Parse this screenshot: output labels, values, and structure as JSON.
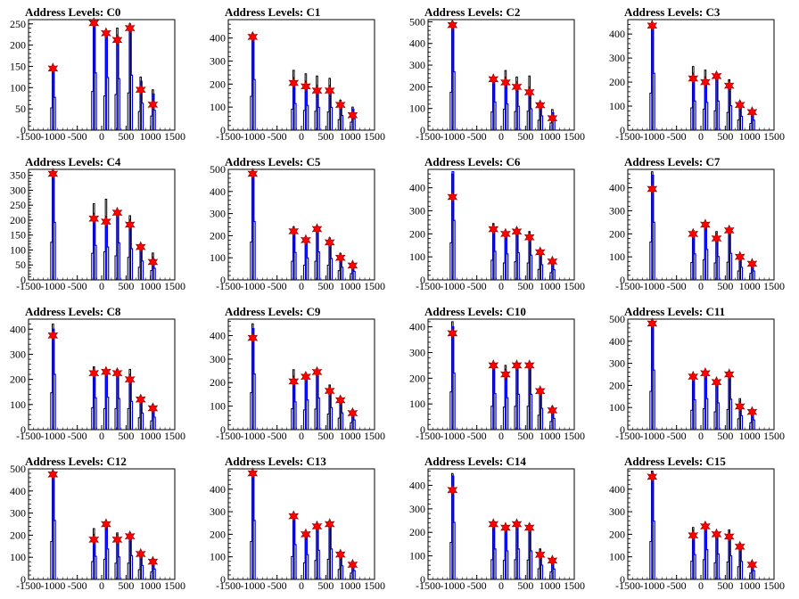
{
  "colors": {
    "axis": "#000000",
    "black_hist": "#000000",
    "blue_hist": "#0000ff",
    "marker_fill": "#ff0000",
    "marker_stroke": "#8b0000"
  },
  "chart_data": [
    {
      "type": "bar",
      "title": "Address Levels: C0",
      "xlim": [
        -1500,
        1500
      ],
      "ylim": [
        0,
        260
      ],
      "yticks": [
        0,
        50,
        100,
        150,
        200,
        250
      ],
      "xticks": [
        -1500,
        -1000,
        -500,
        0,
        500,
        1000,
        1500
      ],
      "peaks_x": [
        -1000,
        -160,
        90,
        320,
        580,
        800,
        1050
      ],
      "black_heights": [
        150,
        260,
        230,
        240,
        250,
        125,
        95
      ],
      "blue_heights": [
        140,
        245,
        225,
        220,
        235,
        115,
        85
      ],
      "marker_y": [
        145,
        252,
        228,
        212,
        240,
        95,
        60
      ]
    },
    {
      "type": "bar",
      "title": "Address Levels: C1",
      "xlim": [
        -1500,
        1500
      ],
      "ylim": [
        0,
        480
      ],
      "yticks": [
        0,
        100,
        200,
        300,
        400
      ],
      "xticks": [
        -1500,
        -1000,
        -500,
        0,
        500,
        1000,
        1500
      ],
      "peaks_x": [
        -1000,
        -160,
        90,
        320,
        580,
        800,
        1050
      ],
      "black_heights": [
        420,
        260,
        245,
        235,
        225,
        130,
        100
      ],
      "blue_heights": [
        400,
        210,
        195,
        180,
        180,
        115,
        90
      ],
      "marker_y": [
        405,
        205,
        190,
        172,
        172,
        110,
        65
      ]
    },
    {
      "type": "bar",
      "title": "Address Levels: C2",
      "xlim": [
        -1500,
        1500
      ],
      "ylim": [
        0,
        510
      ],
      "yticks": [
        0,
        100,
        200,
        300,
        400,
        500
      ],
      "xticks": [
        -1500,
        -1000,
        -500,
        0,
        500,
        1000,
        1500
      ],
      "peaks_x": [
        -1000,
        -160,
        90,
        320,
        580,
        800,
        1050
      ],
      "black_heights": [
        500,
        240,
        275,
        245,
        250,
        130,
        95
      ],
      "blue_heights": [
        490,
        235,
        220,
        200,
        180,
        120,
        80
      ],
      "marker_y": [
        485,
        235,
        220,
        200,
        175,
        115,
        55
      ]
    },
    {
      "type": "bar",
      "title": "Address Levels: C3",
      "xlim": [
        -1500,
        1500
      ],
      "ylim": [
        0,
        460
      ],
      "yticks": [
        0,
        100,
        200,
        300,
        400
      ],
      "xticks": [
        -1500,
        -1000,
        -500,
        0,
        500,
        1000,
        1500
      ],
      "peaks_x": [
        -1000,
        -160,
        90,
        320,
        580,
        800,
        1050
      ],
      "black_heights": [
        440,
        265,
        250,
        230,
        210,
        120,
        80
      ],
      "blue_heights": [
        430,
        220,
        210,
        220,
        185,
        105,
        75
      ],
      "marker_y": [
        435,
        215,
        200,
        225,
        185,
        105,
        75
      ]
    },
    {
      "type": "bar",
      "title": "Address Levels: C4",
      "xlim": [
        -1500,
        1500
      ],
      "ylim": [
        0,
        370
      ],
      "yticks": [
        0,
        50,
        100,
        150,
        200,
        250,
        300,
        350
      ],
      "xticks": [
        -1500,
        -1000,
        -500,
        0,
        500,
        1000,
        1500
      ],
      "peaks_x": [
        -1000,
        -160,
        90,
        320,
        580,
        800,
        1050
      ],
      "black_heights": [
        360,
        255,
        270,
        230,
        215,
        120,
        90
      ],
      "blue_heights": [
        350,
        210,
        200,
        225,
        190,
        115,
        70
      ],
      "marker_y": [
        355,
        205,
        195,
        225,
        185,
        110,
        60
      ]
    },
    {
      "type": "bar",
      "title": "Address Levels: C5",
      "xlim": [
        -1500,
        1500
      ],
      "ylim": [
        0,
        500
      ],
      "yticks": [
        0,
        100,
        200,
        300,
        400,
        500
      ],
      "xticks": [
        -1500,
        -1000,
        -500,
        0,
        500,
        1000,
        1500
      ],
      "peaks_x": [
        -1000,
        -160,
        90,
        320,
        580,
        800,
        1050
      ],
      "black_heights": [
        490,
        240,
        190,
        240,
        190,
        120,
        80
      ],
      "blue_heights": [
        480,
        225,
        180,
        230,
        175,
        105,
        70
      ],
      "marker_y": [
        480,
        220,
        180,
        230,
        170,
        100,
        65
      ]
    },
    {
      "type": "bar",
      "title": "Address Levels: C6",
      "xlim": [
        -1500,
        1500
      ],
      "ylim": [
        0,
        480
      ],
      "yticks": [
        0,
        100,
        200,
        300,
        400
      ],
      "xticks": [
        -1500,
        -1000,
        -500,
        0,
        500,
        1000,
        1500
      ],
      "peaks_x": [
        -1000,
        -160,
        90,
        320,
        580,
        800,
        1050
      ],
      "black_heights": [
        460,
        245,
        210,
        225,
        210,
        130,
        90
      ],
      "blue_heights": [
        470,
        225,
        205,
        215,
        195,
        120,
        80
      ],
      "marker_y": [
        360,
        220,
        200,
        210,
        185,
        120,
        80
      ]
    },
    {
      "type": "bar",
      "title": "Address Levels: C7",
      "xlim": [
        -1500,
        1500
      ],
      "ylim": [
        0,
        480
      ],
      "yticks": [
        0,
        100,
        200,
        300,
        400
      ],
      "xticks": [
        -1500,
        -1000,
        -500,
        0,
        500,
        1000,
        1500
      ],
      "peaks_x": [
        -1000,
        -160,
        90,
        320,
        580,
        800,
        1050
      ],
      "black_heights": [
        470,
        215,
        250,
        210,
        220,
        110,
        80
      ],
      "blue_heights": [
        455,
        205,
        240,
        185,
        210,
        100,
        70
      ],
      "marker_y": [
        395,
        200,
        240,
        180,
        215,
        100,
        70
      ]
    },
    {
      "type": "bar",
      "title": "Address Levels: C8",
      "xlim": [
        -1500,
        1500
      ],
      "ylim": [
        0,
        440
      ],
      "yticks": [
        0,
        100,
        200,
        300,
        400
      ],
      "xticks": [
        -1500,
        -1000,
        -500,
        0,
        500,
        1000,
        1500
      ],
      "peaks_x": [
        -1000,
        -160,
        90,
        320,
        580,
        800,
        1050
      ],
      "black_heights": [
        420,
        250,
        240,
        240,
        240,
        135,
        100
      ],
      "blue_heights": [
        400,
        230,
        235,
        225,
        205,
        120,
        90
      ],
      "marker_y": [
        375,
        225,
        230,
        225,
        200,
        120,
        85
      ]
    },
    {
      "type": "bar",
      "title": "Address Levels: C9",
      "xlim": [
        -1500,
        1500
      ],
      "ylim": [
        0,
        470
      ],
      "yticks": [
        0,
        100,
        200,
        300,
        400
      ],
      "xticks": [
        -1500,
        -1000,
        -500,
        0,
        500,
        1000,
        1500
      ],
      "peaks_x": [
        -1000,
        -160,
        90,
        320,
        580,
        800,
        1050
      ],
      "black_heights": [
        450,
        255,
        240,
        250,
        190,
        140,
        85
      ],
      "blue_heights": [
        430,
        215,
        230,
        245,
        170,
        130,
        75
      ],
      "marker_y": [
        390,
        205,
        225,
        245,
        165,
        125,
        70
      ]
    },
    {
      "type": "bar",
      "title": "Address Levels: C10",
      "xlim": [
        -1500,
        1500
      ],
      "ylim": [
        0,
        430
      ],
      "yticks": [
        0,
        100,
        200,
        300,
        400
      ],
      "xticks": [
        -1500,
        -1000,
        -500,
        0,
        500,
        1000,
        1500
      ],
      "peaks_x": [
        -1000,
        -160,
        90,
        320,
        580,
        800,
        1050
      ],
      "black_heights": [
        420,
        260,
        250,
        260,
        260,
        160,
        90
      ],
      "blue_heights": [
        400,
        255,
        225,
        250,
        250,
        150,
        80
      ],
      "marker_y": [
        375,
        250,
        215,
        250,
        250,
        150,
        75
      ]
    },
    {
      "type": "bar",
      "title": "Address Levels: C11",
      "xlim": [
        -1500,
        1500
      ],
      "ylim": [
        0,
        500
      ],
      "yticks": [
        0,
        100,
        200,
        300,
        400,
        500
      ],
      "xticks": [
        -1500,
        -1000,
        -500,
        0,
        500,
        1000,
        1500
      ],
      "peaks_x": [
        -1000,
        -160,
        90,
        320,
        580,
        800,
        1050
      ],
      "black_heights": [
        495,
        250,
        270,
        230,
        260,
        140,
        90
      ],
      "blue_heights": [
        490,
        245,
        255,
        220,
        250,
        115,
        80
      ],
      "marker_y": [
        480,
        240,
        255,
        215,
        250,
        105,
        80
      ]
    },
    {
      "type": "bar",
      "title": "Address Levels: C12",
      "xlim": [
        -1500,
        1500
      ],
      "ylim": [
        0,
        500
      ],
      "yticks": [
        0,
        100,
        200,
        300,
        400,
        500
      ],
      "xticks": [
        -1500,
        -1000,
        -500,
        0,
        500,
        1000,
        1500
      ],
      "peaks_x": [
        -1000,
        -160,
        90,
        320,
        580,
        800,
        1050
      ],
      "black_heights": [
        490,
        230,
        260,
        210,
        210,
        125,
        95
      ],
      "blue_heights": [
        485,
        190,
        250,
        185,
        195,
        115,
        85
      ],
      "marker_y": [
        475,
        180,
        250,
        180,
        195,
        115,
        80
      ]
    },
    {
      "type": "bar",
      "title": "Address Levels: C13",
      "xlim": [
        -1500,
        1500
      ],
      "ylim": [
        0,
        490
      ],
      "yticks": [
        0,
        100,
        200,
        300,
        400
      ],
      "xticks": [
        -1500,
        -1000,
        -500,
        0,
        500,
        1000,
        1500
      ],
      "peaks_x": [
        -1000,
        -160,
        90,
        320,
        580,
        800,
        1050
      ],
      "black_heights": [
        480,
        290,
        210,
        240,
        255,
        125,
        80
      ],
      "blue_heights": [
        475,
        280,
        200,
        235,
        245,
        110,
        70
      ],
      "marker_y": [
        470,
        280,
        200,
        235,
        245,
        110,
        65
      ]
    },
    {
      "type": "bar",
      "title": "Address Levels: C14",
      "xlim": [
        -1500,
        1500
      ],
      "ylim": [
        0,
        470
      ],
      "yticks": [
        0,
        100,
        200,
        300,
        400
      ],
      "xticks": [
        -1500,
        -1000,
        -500,
        0,
        500,
        1000,
        1500
      ],
      "peaks_x": [
        -1000,
        -160,
        90,
        320,
        580,
        800,
        1050
      ],
      "black_heights": [
        450,
        240,
        230,
        240,
        235,
        130,
        90
      ],
      "blue_heights": [
        440,
        235,
        220,
        235,
        220,
        110,
        80
      ],
      "marker_y": [
        380,
        235,
        220,
        235,
        220,
        105,
        80
      ]
    },
    {
      "type": "bar",
      "title": "Address Levels: C15",
      "xlim": [
        -1500,
        1500
      ],
      "ylim": [
        0,
        490
      ],
      "yticks": [
        0,
        100,
        200,
        300,
        400
      ],
      "xticks": [
        -1500,
        -1000,
        -500,
        0,
        500,
        1000,
        1500
      ],
      "peaks_x": [
        -1000,
        -160,
        90,
        320,
        580,
        800,
        1050
      ],
      "black_heights": [
        480,
        230,
        250,
        210,
        220,
        160,
        80
      ],
      "blue_heights": [
        470,
        200,
        240,
        205,
        190,
        145,
        70
      ],
      "marker_y": [
        455,
        195,
        235,
        200,
        190,
        145,
        65
      ]
    }
  ]
}
